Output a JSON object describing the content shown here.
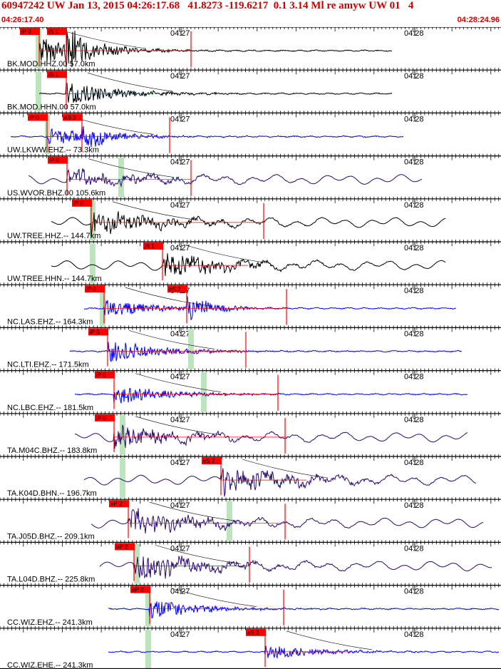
{
  "header": {
    "title_line": "60947242 UW Jan 13, 2015 04:26:17.68   41.8273 -119.6217  0.1 3.14 Ml re amyw UW 01   4",
    "start_time": "04:26:17.40",
    "end_time": "04:28:24.96"
  },
  "time_ticks": [
    "04:27",
    "04:28"
  ],
  "colors": {
    "header_text": "#cc0000",
    "pick_marker": "#ff0000",
    "window_shade": "#bde5bd",
    "trace_black": "#000000",
    "trace_blue": "#0000ff",
    "trace_navy": "#2a0a6e"
  },
  "channels": [
    {
      "label": "BK.MOD.HHZ.00 57.0km",
      "picks": [
        "iP 0",
        "iS 1"
      ],
      "color": "black"
    },
    {
      "label": "BK.MOD.HHN.00 57.0km",
      "picks": [
        "iS 1"
      ],
      "color": "black"
    },
    {
      "label": "UW.LKWW.EHZ.-- 73.3km",
      "picks": [
        "iP 0",
        "eS 2"
      ],
      "color": "blue"
    },
    {
      "label": "US.WVOR.BHZ.00 105.6km",
      "picks": [
        "iP 0"
      ],
      "color": "navy"
    },
    {
      "label": "UW.TREE.HHZ.-- 144.7km",
      "picks": [
        "iP 0"
      ],
      "color": "black"
    },
    {
      "label": "UW.TREE.HHN.-- 144.7km",
      "picks": [
        "iS 1"
      ],
      "color": "black"
    },
    {
      "label": "NC.LAS.EHZ.-- 164.3km",
      "picks": [
        "iP 0",
        "eS 2"
      ],
      "color": "blue"
    },
    {
      "label": "NC.LTI.EHZ.-- 171.5km",
      "picks": [
        "iP 0"
      ],
      "color": "blue"
    },
    {
      "label": "NC.LBC.EHZ.-- 181.5km",
      "picks": [
        "iP 0"
      ],
      "color": "blue"
    },
    {
      "label": "TA.M04C.BHZ.-- 183.8km",
      "picks": [
        "iP 0"
      ],
      "color": "navy"
    },
    {
      "label": "TA.K04D.BHN.-- 196.7km",
      "picks": [
        "eS 2"
      ],
      "color": "navy"
    },
    {
      "label": "TA.J05D.BHZ.-- 209.1km",
      "picks": [
        "eP 2"
      ],
      "color": "navy"
    },
    {
      "label": "TA.L04D.BHZ.-- 225.8km",
      "picks": [
        "eP 2"
      ],
      "color": "navy"
    },
    {
      "label": "CC.WIZ.EHZ.-- 241.3km",
      "picks": [
        "eP 2"
      ],
      "color": "blue"
    },
    {
      "label": "CC.WIZ.EHE.-- 241.3km",
      "picks": [
        "eS 2"
      ],
      "color": "blue"
    }
  ]
}
